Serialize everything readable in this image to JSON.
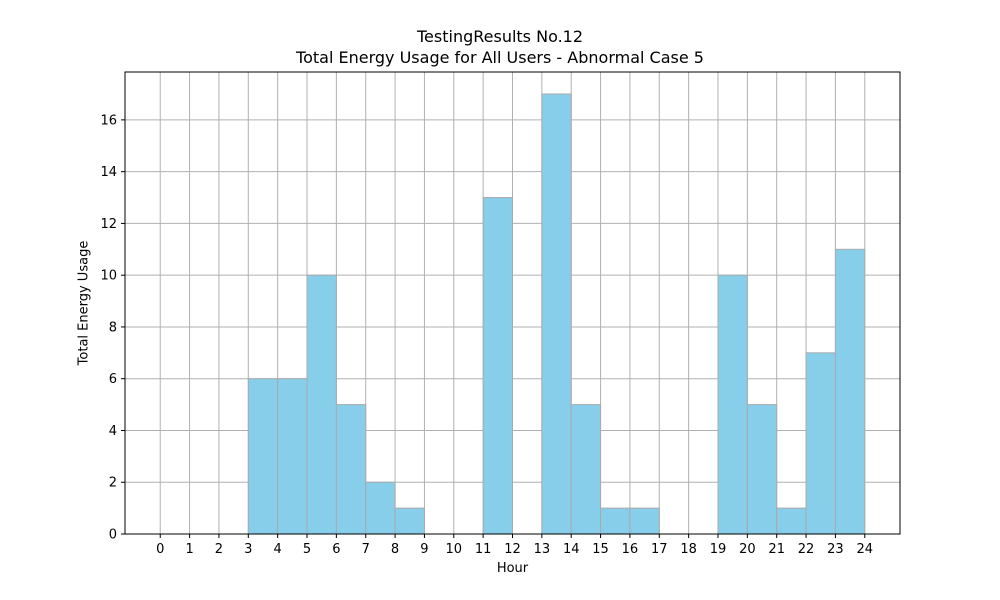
{
  "chart_data": {
    "type": "bar",
    "title": "TestingResults No.12",
    "subtitle": "Total Energy Usage for All Users - Abnormal Case 5",
    "xlabel": "Hour",
    "ylabel": "Total Energy Usage",
    "bin_edges": [
      0,
      1,
      2,
      3,
      4,
      5,
      6,
      7,
      8,
      9,
      10,
      11,
      12,
      13,
      14,
      15,
      16,
      17,
      18,
      19,
      20,
      21,
      22,
      23,
      24
    ],
    "values": [
      0,
      0,
      0,
      6,
      6,
      10,
      5,
      2,
      1,
      0,
      0,
      13,
      0,
      17,
      5,
      1,
      1,
      0,
      0,
      10,
      5,
      1,
      7,
      11
    ],
    "xticks": [
      0,
      1,
      2,
      3,
      4,
      5,
      6,
      7,
      8,
      9,
      10,
      11,
      12,
      13,
      14,
      15,
      16,
      17,
      18,
      19,
      20,
      21,
      22,
      23,
      24
    ],
    "yticks": [
      0,
      2,
      4,
      6,
      8,
      10,
      12,
      14,
      16
    ],
    "xlim": [
      -1.2,
      25.2
    ],
    "ylim": [
      0,
      17.85
    ],
    "grid": true,
    "bar_color": "#87ceeb",
    "bar_edge_color": "#aaaaaa",
    "grid_color": "#b0b0b0"
  }
}
